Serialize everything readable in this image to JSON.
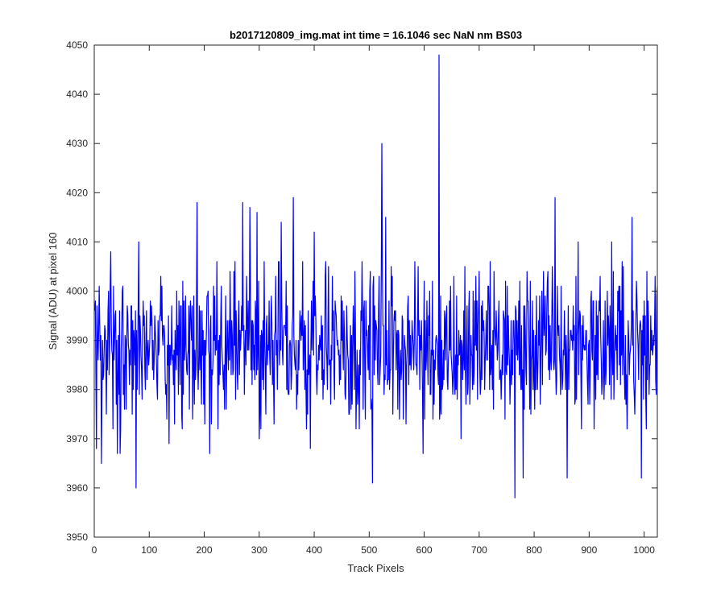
{
  "chart_data": {
    "type": "line",
    "title": "b2017120809_img.mat int time = 16.1046 sec   NaN nm BS03",
    "xlabel": "Track Pixels",
    "ylabel": "Signal (ADU) at pixel 160",
    "xlim": [
      0,
      1024
    ],
    "ylim": [
      3950,
      4050
    ],
    "xticks": [
      0,
      100,
      200,
      300,
      400,
      500,
      600,
      700,
      800,
      900,
      1000
    ],
    "yticks": [
      3950,
      3960,
      3970,
      3980,
      3990,
      4000,
      4010,
      4020,
      4030,
      4040,
      4050
    ],
    "grid": false,
    "legend": "none",
    "series": [
      {
        "color": "#0000ff",
        "x_start": 1,
        "x_step": 1,
        "baseline": 3989,
        "noise_amplitude": 7,
        "values_note": "",
        "spikes": [
          {
            "x": 4,
            "y": 3968
          },
          {
            "x": 13,
            "y": 3965
          },
          {
            "x": 30,
            "y": 4008
          },
          {
            "x": 42,
            "y": 3967
          },
          {
            "x": 47,
            "y": 3967
          },
          {
            "x": 76,
            "y": 3960
          },
          {
            "x": 81,
            "y": 4010
          },
          {
            "x": 136,
            "y": 3969
          },
          {
            "x": 187,
            "y": 4018
          },
          {
            "x": 210,
            "y": 3967
          },
          {
            "x": 225,
            "y": 3972
          },
          {
            "x": 270,
            "y": 4018
          },
          {
            "x": 283,
            "y": 4017
          },
          {
            "x": 296,
            "y": 4016
          },
          {
            "x": 300,
            "y": 3970
          },
          {
            "x": 340,
            "y": 4014
          },
          {
            "x": 362,
            "y": 4019
          },
          {
            "x": 368,
            "y": 3976
          },
          {
            "x": 393,
            "y": 3968
          },
          {
            "x": 400,
            "y": 4012
          },
          {
            "x": 506,
            "y": 3961
          },
          {
            "x": 523,
            "y": 4030
          },
          {
            "x": 530,
            "y": 4015
          },
          {
            "x": 598,
            "y": 3967
          },
          {
            "x": 627,
            "y": 4048
          },
          {
            "x": 631,
            "y": 3975
          },
          {
            "x": 667,
            "y": 3970
          },
          {
            "x": 740,
            "y": 3978
          },
          {
            "x": 765,
            "y": 3958
          },
          {
            "x": 780,
            "y": 3962
          },
          {
            "x": 838,
            "y": 4019
          },
          {
            "x": 860,
            "y": 3962
          },
          {
            "x": 880,
            "y": 4010
          },
          {
            "x": 941,
            "y": 4010
          },
          {
            "x": 978,
            "y": 4015
          },
          {
            "x": 995,
            "y": 3962
          },
          {
            "x": 1003,
            "y": 3978
          },
          {
            "x": 1020,
            "y": 4003
          }
        ]
      }
    ]
  }
}
